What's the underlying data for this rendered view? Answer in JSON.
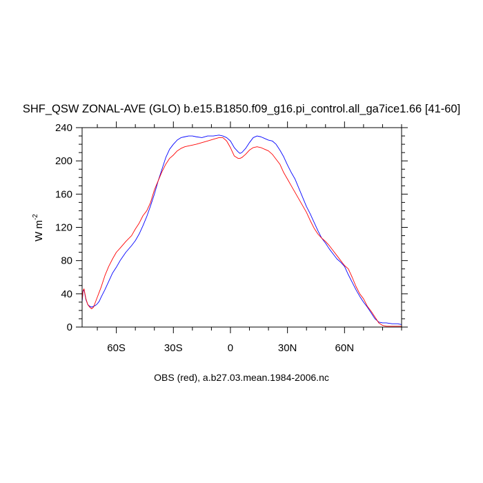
{
  "chart_data": {
    "type": "line",
    "title": "SHF_QSW ZONAL-AVE (GLO) b.e15.B1850.f09_g16.pi_control.all_ga7ice1.66 [41-60]",
    "ylabel": "W m",
    "ylabel_superscript": "-2",
    "caption": "OBS (red), a.b27.03.mean.1984-2006.nc",
    "xlim": [
      -78,
      90
    ],
    "ylim": [
      0,
      240
    ],
    "x_ticks": [
      {
        "value": -60,
        "label": "60S"
      },
      {
        "value": -30,
        "label": "30S"
      },
      {
        "value": 0,
        "label": "0"
      },
      {
        "value": 30,
        "label": "30N"
      },
      {
        "value": 60,
        "label": "60N"
      }
    ],
    "y_ticks": [
      {
        "value": 0,
        "label": "0"
      },
      {
        "value": 40,
        "label": "40"
      },
      {
        "value": 80,
        "label": "80"
      },
      {
        "value": 120,
        "label": "120"
      },
      {
        "value": 160,
        "label": "160"
      },
      {
        "value": 200,
        "label": "200"
      },
      {
        "value": 240,
        "label": "240"
      }
    ],
    "grid": false,
    "series": [
      {
        "color": "#0000ff",
        "x": [
          -78,
          -77.5,
          -77,
          -76,
          -75,
          -74,
          -73,
          -72,
          -71,
          -70,
          -69,
          -68,
          -66,
          -64,
          -62,
          -60,
          -58,
          -55,
          -52,
          -50,
          -48,
          -46,
          -44,
          -42,
          -40,
          -38,
          -36,
          -34,
          -32,
          -30,
          -28,
          -26,
          -24,
          -22,
          -20,
          -18,
          -15,
          -12,
          -9,
          -6,
          -4,
          -2,
          0,
          2,
          4,
          5,
          6,
          8,
          10,
          12,
          14,
          16,
          18,
          20,
          22,
          24,
          26,
          28,
          30,
          32,
          34,
          36,
          38,
          40,
          42,
          44,
          46,
          48,
          50,
          52,
          54,
          56,
          58,
          60,
          62,
          64,
          66,
          68,
          70,
          72,
          74,
          76,
          78,
          80,
          82,
          85,
          88,
          90
        ],
        "y": [
          30,
          43,
          45,
          33,
          27,
          25,
          24,
          25,
          26,
          28,
          31,
          36,
          45,
          55,
          65,
          72,
          80,
          90,
          98,
          104,
          112,
          122,
          133,
          146,
          160,
          176,
          190,
          204,
          214,
          220,
          225,
          228,
          229,
          230,
          230,
          229,
          228,
          230,
          230,
          231,
          230,
          228,
          224,
          216,
          211,
          209,
          210,
          215,
          222,
          228,
          230,
          229,
          227,
          225,
          224,
          220,
          213,
          205,
          195,
          186,
          178,
          167,
          156,
          145,
          136,
          126,
          116,
          107,
          101,
          94,
          88,
          82,
          78,
          73,
          63,
          54,
          45,
          37,
          30,
          24,
          17,
          10,
          6,
          5,
          5,
          4,
          4,
          3
        ]
      },
      {
        "color": "#ff0000",
        "x": [
          -78,
          -77.5,
          -77,
          -76,
          -75,
          -74,
          -73,
          -72,
          -71,
          -70,
          -69,
          -68,
          -66,
          -64,
          -62,
          -60,
          -58,
          -55,
          -52,
          -50,
          -48,
          -46,
          -44,
          -42,
          -40,
          -38,
          -36,
          -34,
          -32,
          -30,
          -28,
          -26,
          -24,
          -22,
          -20,
          -18,
          -15,
          -12,
          -9,
          -6,
          -4,
          -2,
          0,
          2,
          4,
          5,
          6,
          8,
          10,
          12,
          14,
          16,
          18,
          20,
          22,
          24,
          26,
          28,
          30,
          32,
          34,
          36,
          38,
          40,
          42,
          44,
          46,
          48,
          50,
          52,
          54,
          56,
          58,
          60,
          62,
          64,
          66,
          68,
          70,
          72,
          74,
          76,
          78,
          80,
          82,
          85,
          88,
          90
        ],
        "y": [
          32,
          44,
          46,
          34,
          27,
          24,
          22,
          24,
          30,
          36,
          42,
          48,
          62,
          73,
          82,
          90,
          95,
          103,
          110,
          118,
          125,
          134,
          140,
          150,
          165,
          176,
          187,
          196,
          203,
          207,
          212,
          215,
          217,
          218,
          219,
          220,
          222,
          224,
          226,
          228,
          228,
          224,
          216,
          206,
          203,
          203,
          204,
          208,
          213,
          216,
          217,
          216,
          214,
          212,
          208,
          202,
          196,
          186,
          178,
          170,
          162,
          154,
          146,
          138,
          128,
          119,
          112,
          107,
          103,
          98,
          92,
          86,
          80,
          74,
          70,
          60,
          49,
          40,
          34,
          25,
          19,
          12,
          5,
          2,
          1,
          1,
          1,
          1
        ]
      }
    ]
  }
}
